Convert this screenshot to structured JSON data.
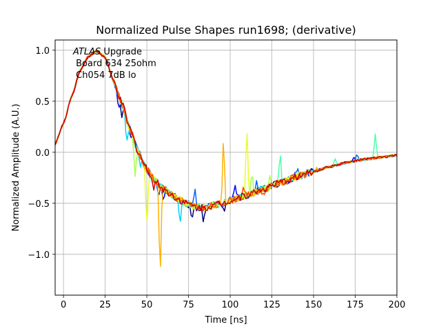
{
  "chart_data": {
    "type": "line",
    "title": "Normalized Pulse Shapes run1698; (derivative)",
    "xlabel": "Time [ns]",
    "ylabel": "Normalized Amplitude (A.U.)",
    "xlim": [
      -5,
      200
    ],
    "ylim": [
      -1.4,
      1.1
    ],
    "xticks": [
      0,
      25,
      50,
      75,
      100,
      125,
      150,
      175,
      200
    ],
    "xtick_labels": [
      "0",
      "25",
      "50",
      "75",
      "100",
      "125",
      "150",
      "175",
      "200"
    ],
    "yticks": [
      1.0,
      0.5,
      0.0,
      -0.5,
      -1.0
    ],
    "ytick_labels": [
      "1.0",
      "0.5",
      "0.0",
      "−0.5",
      "−1.0"
    ],
    "grid": true,
    "annotation": {
      "line1_italic": "ATLAS",
      "line1_rest": " Upgrade",
      "line2": " Board 634 25ohm",
      "line3": " Ch054 7dB lo"
    },
    "base_curve": {
      "x": [
        -5,
        0,
        5,
        10,
        15,
        20,
        25,
        30,
        35,
        40,
        45,
        50,
        55,
        60,
        65,
        70,
        75,
        80,
        85,
        90,
        95,
        100,
        110,
        120,
        130,
        140,
        150,
        160,
        170,
        180,
        190,
        200
      ],
      "y": [
        0.08,
        0.28,
        0.55,
        0.8,
        0.94,
        0.99,
        0.93,
        0.7,
        0.48,
        0.22,
        0.0,
        -0.17,
        -0.28,
        -0.36,
        -0.42,
        -0.47,
        -0.51,
        -0.54,
        -0.54,
        -0.52,
        -0.5,
        -0.47,
        -0.42,
        -0.36,
        -0.3,
        -0.24,
        -0.19,
        -0.14,
        -0.1,
        -0.07,
        -0.05,
        -0.03
      ]
    },
    "series": [
      {
        "color": "#00007f",
        "spikes": [
          {
            "x": 35,
            "dy": -0.12
          },
          {
            "x": 77,
            "dy": -0.12
          },
          {
            "x": 84,
            "dy": -0.18
          },
          {
            "x": 96,
            "dy": -0.1
          }
        ]
      },
      {
        "color": "#0000ff",
        "spikes": [
          {
            "x": 33,
            "dy": -0.1
          },
          {
            "x": 40,
            "dy": -0.08
          },
          {
            "x": 60,
            "dy": -0.12
          },
          {
            "x": 103,
            "dy": 0.1
          },
          {
            "x": 174,
            "dy": 0.05
          }
        ]
      },
      {
        "color": "#0063ff",
        "spikes": [
          {
            "x": 57,
            "dy": -0.15
          },
          {
            "x": 79,
            "dy": 0.16
          },
          {
            "x": 116,
            "dy": 0.12
          },
          {
            "x": 140,
            "dy": 0.08
          },
          {
            "x": 176,
            "dy": 0.07
          }
        ]
      },
      {
        "color": "#00d4ff",
        "spikes": [
          {
            "x": 38,
            "dy": -0.25
          },
          {
            "x": 46,
            "dy": -0.1
          },
          {
            "x": 70,
            "dy": -0.28
          },
          {
            "x": 132,
            "dy": 0.06
          }
        ]
      },
      {
        "color": "#4dffaa",
        "spikes": [
          {
            "x": 130,
            "dy": 0.28
          },
          {
            "x": 187,
            "dy": 0.24
          },
          {
            "x": 163,
            "dy": 0.06
          }
        ]
      },
      {
        "color": "#a8ff4d",
        "spikes": [
          {
            "x": 43,
            "dy": -0.3
          },
          {
            "x": 113,
            "dy": 0.22
          },
          {
            "x": 124,
            "dy": 0.1
          }
        ]
      },
      {
        "color": "#e6ff26",
        "spikes": [
          {
            "x": 50,
            "dy": -0.62
          },
          {
            "x": 110,
            "dy": 0.7
          },
          {
            "x": 142,
            "dy": 0.06
          }
        ]
      },
      {
        "color": "#ffb000",
        "spikes": [
          {
            "x": 58,
            "dy": -0.95
          },
          {
            "x": 96,
            "dy": 0.7
          },
          {
            "x": 152,
            "dy": 0.04
          }
        ]
      },
      {
        "color": "#ff4c00",
        "spikes": [
          {
            "x": 120,
            "dy": -0.08
          },
          {
            "x": 108,
            "dy": 0.06
          }
        ]
      },
      {
        "color": "#cc0000",
        "spikes": [
          {
            "x": 54,
            "dy": -0.1
          }
        ]
      }
    ]
  }
}
